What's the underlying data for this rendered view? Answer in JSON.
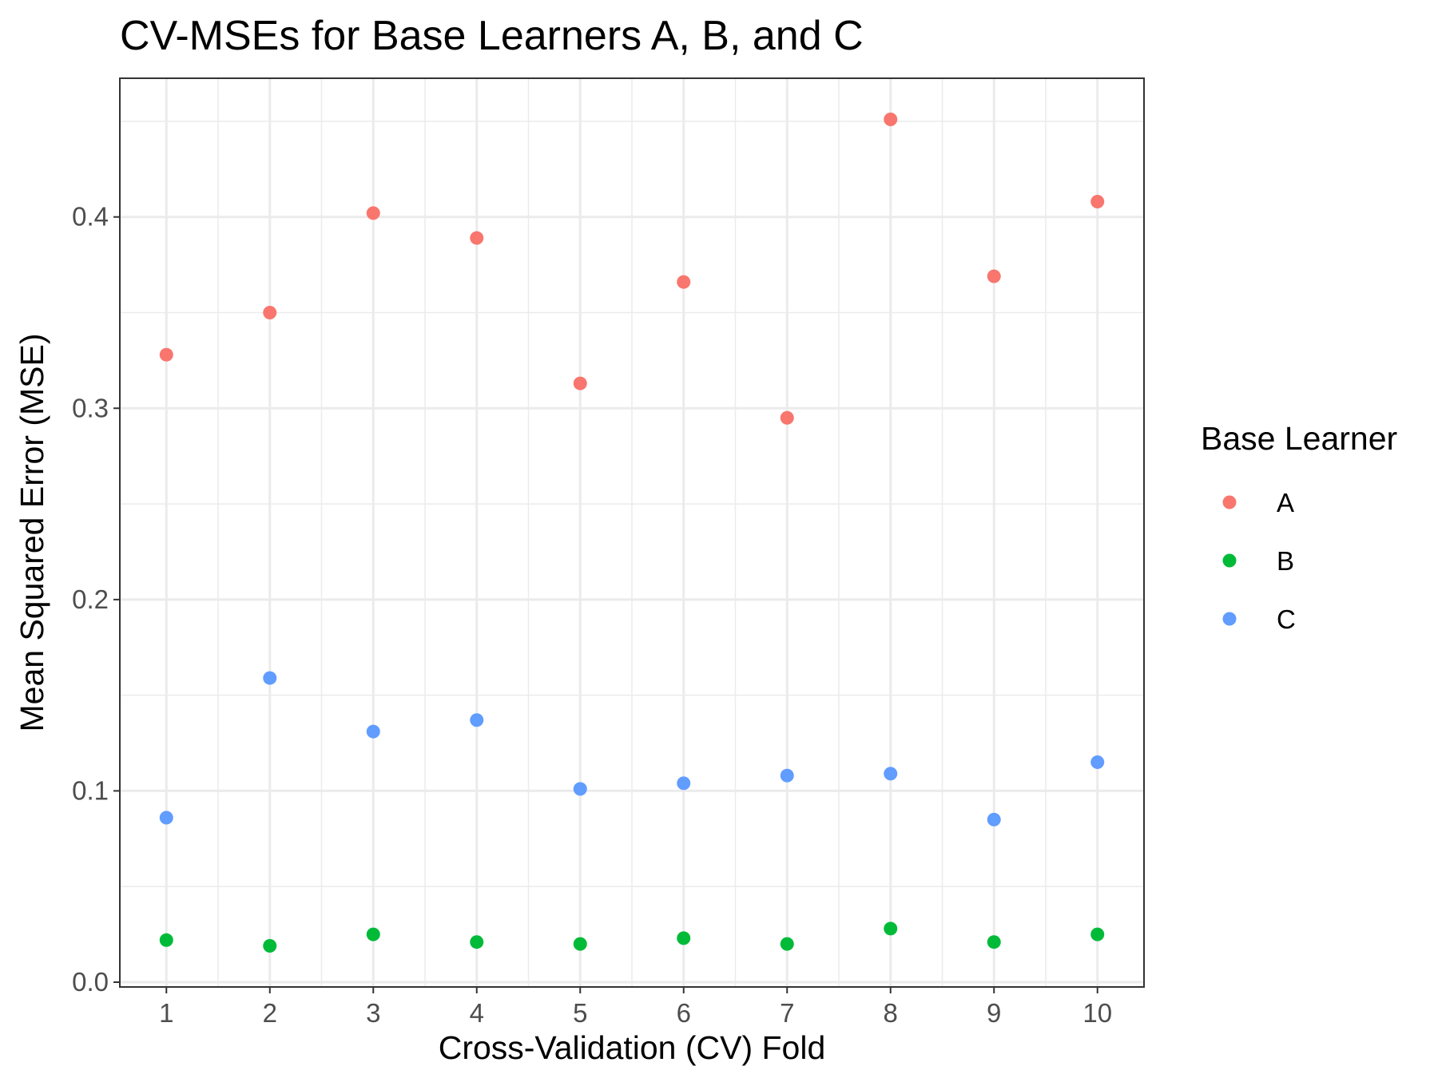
{
  "chart_data": {
    "type": "scatter",
    "title": "CV-MSEs for Base Learners A, B, and C",
    "xlabel": "Cross-Validation (CV) Fold",
    "ylabel": "Mean Squared Error (MSE)",
    "x": [
      1,
      2,
      3,
      4,
      5,
      6,
      7,
      8,
      9,
      10
    ],
    "x_tick_labels": [
      "1",
      "2",
      "3",
      "4",
      "5",
      "6",
      "7",
      "8",
      "9",
      "10"
    ],
    "y_ticks": [
      0.0,
      0.1,
      0.2,
      0.3,
      0.4
    ],
    "y_tick_labels": [
      "0.0",
      "0.1",
      "0.2",
      "0.3",
      "0.4"
    ],
    "xlim": [
      0.55,
      10.45
    ],
    "ylim": [
      -0.0025,
      0.4725
    ],
    "grid": true,
    "legend_title": "Base Learner",
    "legend_position": "right",
    "series": [
      {
        "name": "A",
        "color": "#F8766D",
        "values": [
          0.328,
          0.35,
          0.402,
          0.389,
          0.313,
          0.366,
          0.295,
          0.451,
          0.369,
          0.408
        ]
      },
      {
        "name": "B",
        "color": "#00BA38",
        "values": [
          0.022,
          0.019,
          0.025,
          0.021,
          0.02,
          0.023,
          0.02,
          0.028,
          0.021,
          0.025
        ]
      },
      {
        "name": "C",
        "color": "#619CFF",
        "values": [
          0.086,
          0.159,
          0.131,
          0.137,
          0.101,
          0.104,
          0.108,
          0.109,
          0.085,
          0.115
        ]
      }
    ]
  }
}
